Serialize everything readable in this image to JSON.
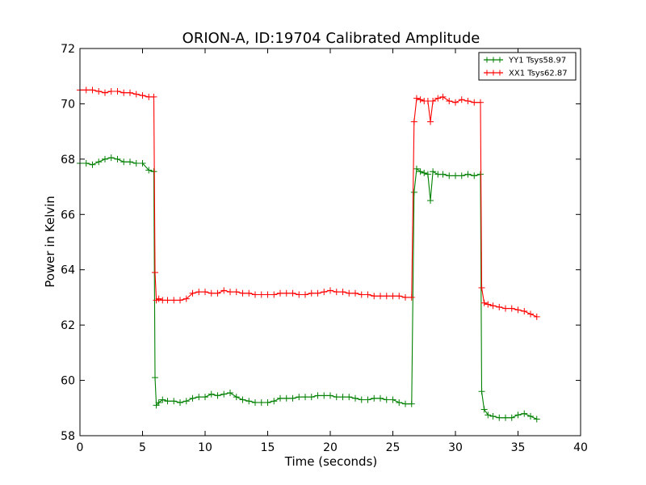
{
  "chart_data": {
    "type": "line",
    "title": "ORION-A, ID:19704 Calibrated Amplitude",
    "xlabel": "Time (seconds)",
    "ylabel": "Power in Kelvin",
    "xlim": [
      0,
      40
    ],
    "ylim": [
      58,
      72
    ],
    "xticks": [
      0,
      5,
      10,
      15,
      20,
      25,
      30,
      35,
      40
    ],
    "yticks": [
      58,
      60,
      62,
      64,
      66,
      68,
      70,
      72
    ],
    "grid": false,
    "legend_position": "top-right",
    "marker": "+",
    "series": [
      {
        "name": "YY1 Tsys58.97",
        "color": "#008000",
        "x": [
          0,
          0.5,
          1,
          1.5,
          2,
          2.5,
          3,
          3.5,
          4,
          4.5,
          5,
          5.5,
          5.9,
          6,
          6.1,
          6.3,
          6.6,
          7,
          7.5,
          8,
          8.5,
          9,
          9.5,
          10,
          10.5,
          11,
          11.5,
          12,
          12.5,
          13,
          13.5,
          14,
          14.5,
          15,
          15.5,
          16,
          16.5,
          17,
          17.5,
          18,
          18.5,
          19,
          19.5,
          20,
          20.5,
          21,
          21.5,
          22,
          22.5,
          23,
          23.5,
          24,
          24.5,
          25,
          25.5,
          26,
          26.5,
          26.7,
          26.9,
          27.2,
          27.5,
          27.8,
          28,
          28.2,
          28.6,
          29,
          29.5,
          30,
          30.5,
          31,
          31.5,
          32,
          32.1,
          32.3,
          32.6,
          33,
          33.5,
          34,
          34.5,
          35,
          35.5,
          36,
          36.5
        ],
        "values": [
          67.85,
          67.85,
          67.8,
          67.9,
          68.0,
          68.05,
          68.0,
          67.9,
          67.9,
          67.85,
          67.85,
          67.6,
          67.55,
          60.1,
          59.1,
          59.2,
          59.3,
          59.25,
          59.25,
          59.2,
          59.25,
          59.35,
          59.4,
          59.4,
          59.5,
          59.45,
          59.5,
          59.55,
          59.4,
          59.3,
          59.25,
          59.2,
          59.2,
          59.2,
          59.25,
          59.35,
          59.35,
          59.35,
          59.4,
          59.4,
          59.4,
          59.45,
          59.45,
          59.45,
          59.4,
          59.4,
          59.4,
          59.35,
          59.3,
          59.3,
          59.35,
          59.35,
          59.3,
          59.3,
          59.2,
          59.15,
          59.15,
          66.8,
          67.65,
          67.55,
          67.5,
          67.45,
          66.5,
          67.55,
          67.45,
          67.45,
          67.4,
          67.4,
          67.4,
          67.45,
          67.4,
          67.45,
          59.6,
          58.95,
          58.75,
          58.7,
          58.65,
          58.65,
          58.65,
          58.75,
          58.8,
          58.7,
          58.6
        ]
      },
      {
        "name": "XX1 Tsys62.87",
        "color": "#ff0000",
        "x": [
          0,
          0.5,
          1,
          1.5,
          2,
          2.5,
          3,
          3.5,
          4,
          4.5,
          5,
          5.5,
          5.9,
          6,
          6.1,
          6.3,
          6.6,
          7,
          7.5,
          8,
          8.5,
          9,
          9.5,
          10,
          10.5,
          11,
          11.5,
          12,
          12.5,
          13,
          13.5,
          14,
          14.5,
          15,
          15.5,
          16,
          16.5,
          17,
          17.5,
          18,
          18.5,
          19,
          19.5,
          20,
          20.5,
          21,
          21.5,
          22,
          22.5,
          23,
          23.5,
          24,
          24.5,
          25,
          25.5,
          26,
          26.5,
          26.7,
          26.9,
          27.2,
          27.5,
          27.8,
          28,
          28.2,
          28.6,
          29,
          29.5,
          30,
          30.5,
          31,
          31.5,
          32,
          32.1,
          32.3,
          32.6,
          33,
          33.5,
          34,
          34.5,
          35,
          35.5,
          36,
          36.5
        ],
        "values": [
          70.5,
          70.5,
          70.5,
          70.45,
          70.4,
          70.45,
          70.45,
          70.4,
          70.4,
          70.35,
          70.3,
          70.25,
          70.25,
          63.9,
          62.9,
          62.95,
          62.9,
          62.9,
          62.9,
          62.9,
          62.95,
          63.15,
          63.2,
          63.2,
          63.15,
          63.15,
          63.25,
          63.2,
          63.2,
          63.15,
          63.15,
          63.1,
          63.1,
          63.1,
          63.1,
          63.15,
          63.15,
          63.15,
          63.1,
          63.1,
          63.15,
          63.15,
          63.2,
          63.25,
          63.2,
          63.2,
          63.15,
          63.15,
          63.1,
          63.1,
          63.05,
          63.05,
          63.05,
          63.05,
          63.05,
          63.0,
          63.0,
          69.35,
          70.2,
          70.15,
          70.1,
          70.1,
          69.35,
          70.1,
          70.2,
          70.25,
          70.1,
          70.05,
          70.15,
          70.1,
          70.05,
          70.05,
          63.35,
          62.8,
          62.75,
          62.7,
          62.65,
          62.6,
          62.6,
          62.55,
          62.5,
          62.4,
          62.3
        ]
      }
    ]
  }
}
